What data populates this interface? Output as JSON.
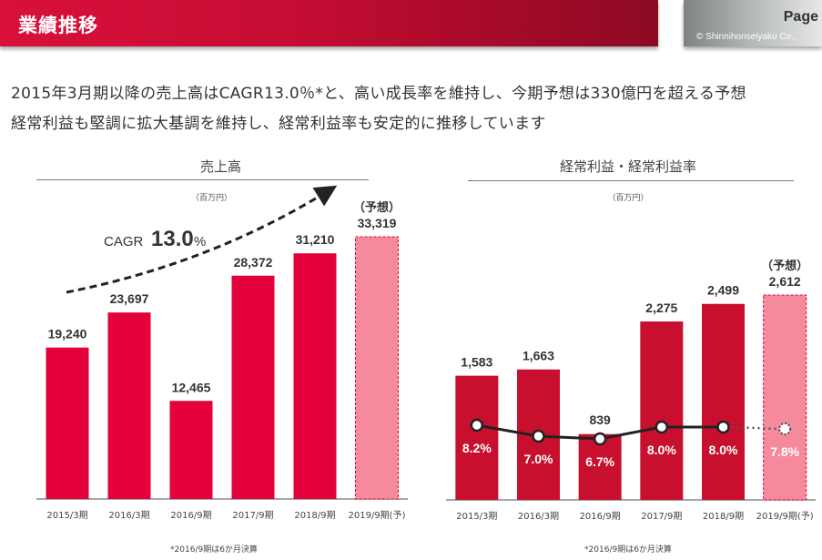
{
  "header": {
    "title": "業績推移",
    "page_label": "Page",
    "copyright": "© Shinnihonseiyaku Co.,"
  },
  "lead": {
    "line1": "2015年3月期以降の売上高はCAGR13.0％*と、高い成長率を維持し、今期予想は330億円を超える予想",
    "line2": "経常利益も堅調に拡大基調を維持し、経常利益率も安定的に推移しています"
  },
  "colors": {
    "sales_bar": "#E4003A",
    "profit_bar": "#C8102E",
    "forecast_bar": "#F48A9C",
    "forecast_border": "#E4003A",
    "line": "#222222"
  },
  "chart_data": [
    {
      "type": "bar",
      "title": "売上高",
      "unit_label": "（百万円）",
      "categories": [
        "2015/3期",
        "2016/3期",
        "2016/9期",
        "2017/9期",
        "2018/9期",
        "2019/9期(予)"
      ],
      "values": [
        19240,
        23697,
        12465,
        28372,
        31210,
        33319
      ],
      "value_labels": [
        "19,240",
        "23,697",
        "12,465",
        "28,372",
        "31,210",
        "33,319"
      ],
      "forecast_index": 5,
      "forecast_tag": "（予想）",
      "annotation": {
        "prefix": "CAGR",
        "value": "13.0",
        "suffix": "%"
      },
      "ylim": [
        0,
        33319
      ],
      "grid": false,
      "footnote": "*2016/9期は6か月決算"
    },
    {
      "type": "bar",
      "title": "経常利益・経常利益率",
      "unit_label": "（百万円）",
      "categories": [
        "2015/3期",
        "2016/3期",
        "2016/9期",
        "2017/9期",
        "2018/9期",
        "2019/9期(予)"
      ],
      "values": [
        1583,
        1663,
        839,
        2275,
        2499,
        2612
      ],
      "value_labels": [
        "1,583",
        "1,663",
        "839",
        "2,275",
        "2,499",
        "2,612"
      ],
      "forecast_index": 5,
      "forecast_tag": "（予想）",
      "line_series": {
        "name": "経常利益率",
        "type": "line",
        "values": [
          8.2,
          7.0,
          6.7,
          8.0,
          8.0,
          7.8
        ],
        "labels": [
          "8.2%",
          "7.0%",
          "6.7%",
          "8.0%",
          "8.0%",
          "7.8%"
        ]
      },
      "ylim": [
        0,
        2612
      ],
      "grid": false,
      "footnote": "*2016/9期は6か月決算"
    }
  ]
}
